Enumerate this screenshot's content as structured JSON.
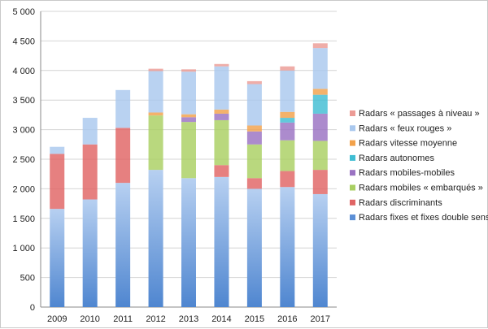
{
  "chart_data": {
    "type": "bar",
    "stacked": true,
    "categories": [
      "2009",
      "2010",
      "2011",
      "2012",
      "2013",
      "2014",
      "2015",
      "2016",
      "2017"
    ],
    "ylim": [
      0,
      5000
    ],
    "yticks": [
      0,
      500,
      1000,
      1500,
      2000,
      2500,
      3000,
      3500,
      4000,
      4500,
      5000
    ],
    "ytick_labels": [
      "0",
      "500",
      "1 000",
      "1 500",
      "2 000",
      "2 500",
      "3 000",
      "3 500",
      "4 000",
      "4 500",
      "5 000"
    ],
    "grid": true,
    "legend_position": "right",
    "series": [
      {
        "name": "Radars fixes et fixes double sens",
        "color": "#5b8fd6",
        "values": [
          1660,
          1820,
          2100,
          2320,
          2180,
          2200,
          2000,
          2030,
          1910
        ]
      },
      {
        "name": "Radars discriminants",
        "color": "#e06464",
        "values": [
          930,
          930,
          930,
          0,
          0,
          200,
          180,
          270,
          410
        ]
      },
      {
        "name": "Radars mobiles « embarqués »",
        "color": "#a9cf62",
        "values": [
          0,
          0,
          0,
          920,
          950,
          760,
          570,
          520,
          490
        ]
      },
      {
        "name": "Radars mobiles-mobiles",
        "color": "#9a72c2",
        "values": [
          0,
          0,
          0,
          0,
          80,
          110,
          220,
          300,
          460
        ]
      },
      {
        "name": "Radars autonomes",
        "color": "#3fbdd3",
        "values": [
          0,
          0,
          0,
          0,
          0,
          0,
          0,
          80,
          320
        ]
      },
      {
        "name": "Radars vitesse moyenne",
        "color": "#f2a14a",
        "values": [
          0,
          0,
          0,
          50,
          50,
          70,
          100,
          100,
          100
        ]
      },
      {
        "name": "Radars « feux rouges »",
        "color": "#a9c8ee",
        "values": [
          120,
          450,
          640,
          700,
          720,
          730,
          700,
          700,
          690
        ]
      },
      {
        "name": "Radars « passages à niveau »",
        "color": "#ec9b95",
        "values": [
          0,
          0,
          0,
          40,
          40,
          40,
          50,
          70,
          80
        ]
      }
    ]
  }
}
